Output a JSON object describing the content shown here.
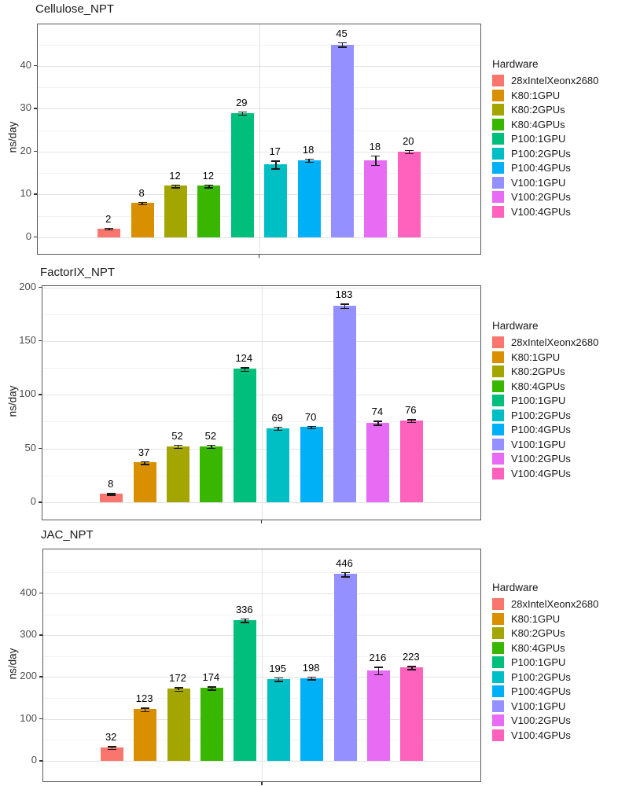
{
  "palette": {
    "bar_colors": [
      "#F8766D",
      "#D89000",
      "#A3A500",
      "#39B600",
      "#00BF7D",
      "#00BFC4",
      "#00B0F6",
      "#9590FF",
      "#E76BF3",
      "#FF62BC"
    ],
    "grid_major": "#e3e3e3",
    "grid_minor": "#f2f2f2",
    "panel_border": "#595959",
    "tick_text": "#4d4d4d",
    "title_text": "#1a1a1a"
  },
  "legend": {
    "title": "Hardware",
    "labels": [
      "28xIntelXeonx2680",
      "K80:1GPU",
      "K80:2GPUs",
      "K80:4GPUs",
      "P100:1GPU",
      "P100:2GPUs",
      "P100:4GPUs",
      "V100:1GPU",
      "V100:2GPUs",
      "V100:4GPUs"
    ]
  },
  "chart_data": [
    {
      "type": "bar",
      "title": "Cellulose_NPT",
      "xlabel": "",
      "ylabel": "ns/day",
      "legend_title": "Hardware",
      "legend_position": "right",
      "grid": "on",
      "categories": [
        "28xIntelXeonx2680",
        "K80:1GPU",
        "K80:2GPUs",
        "K80:4GPUs",
        "P100:1GPU",
        "P100:2GPUs",
        "P100:4GPUs",
        "V100:1GPU",
        "V100:2GPUs",
        "V100:4GPUs"
      ],
      "values": [
        2,
        8,
        12,
        12,
        29,
        17,
        18,
        45,
        18,
        20
      ],
      "errors": [
        0.2,
        0.3,
        0.35,
        0.35,
        0.4,
        0.9,
        0.4,
        0.5,
        1.1,
        0.35
      ],
      "yticks": [
        0,
        10,
        20,
        30,
        40
      ],
      "ylim": [
        -3.9,
        49.7
      ]
    },
    {
      "type": "bar",
      "title": "FactorIX_NPT",
      "xlabel": "",
      "ylabel": "ns/day",
      "legend_title": "Hardware",
      "legend_position": "right",
      "grid": "on",
      "categories": [
        "28xIntelXeonx2680",
        "K80:1GPU",
        "K80:2GPUs",
        "K80:4GPUs",
        "P100:1GPU",
        "P100:2GPUs",
        "P100:4GPUs",
        "V100:1GPU",
        "V100:2GPUs",
        "V100:4GPUs"
      ],
      "values": [
        8,
        37,
        52,
        52,
        124,
        69,
        70,
        183,
        74,
        76
      ],
      "errors": [
        0.8,
        1.2,
        1.5,
        1.5,
        1.8,
        1.5,
        1.2,
        2.0,
        1.8,
        1.2
      ],
      "yticks": [
        0,
        50,
        100,
        150,
        200
      ],
      "ylim": [
        -16.1,
        201.1
      ]
    },
    {
      "type": "bar",
      "title": "JAC_NPT",
      "xlabel": "",
      "ylabel": "ns/day",
      "legend_title": "Hardware",
      "legend_position": "right",
      "grid": "on",
      "categories": [
        "28xIntelXeonx2680",
        "K80:1GPU",
        "K80:2GPUs",
        "K80:4GPUs",
        "P100:1GPU",
        "P100:2GPUs",
        "P100:4GPUs",
        "V100:1GPU",
        "V100:2GPUs",
        "V100:4GPUs"
      ],
      "values": [
        32,
        123,
        172,
        174,
        336,
        195,
        198,
        446,
        216,
        223
      ],
      "errors": [
        3,
        4,
        4,
        4,
        4,
        4,
        3,
        5,
        9,
        4
      ],
      "yticks": [
        0,
        100,
        200,
        300,
        400
      ],
      "ylim": [
        -48.8,
        504.7
      ]
    }
  ]
}
